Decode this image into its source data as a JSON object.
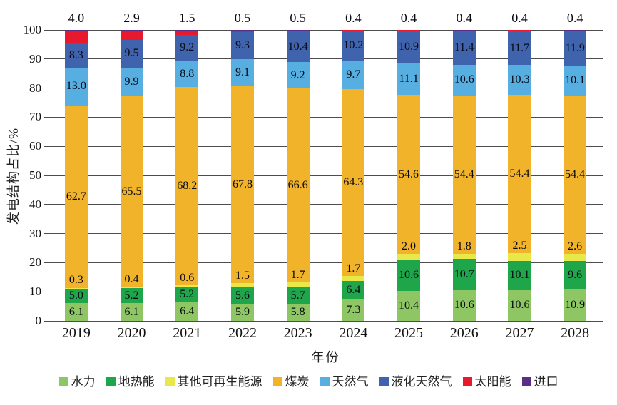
{
  "chart_data": {
    "type": "bar",
    "subtype": "stacked",
    "title": "",
    "xlabel": "年份",
    "ylabel": "发电结构占比/%",
    "ylim": [
      0,
      100
    ],
    "ytick_step": 10,
    "grid": true,
    "legend_position": "bottom",
    "categories": [
      "2019",
      "2020",
      "2021",
      "2022",
      "2023",
      "2024",
      "2025",
      "2026",
      "2027",
      "2028"
    ],
    "series": [
      {
        "name": "水力",
        "slug": "hydro",
        "color": "#8dc663",
        "label_position": "inside",
        "values": [
          6.1,
          6.1,
          6.4,
          5.9,
          5.8,
          7.3,
          10.4,
          10.6,
          10.6,
          10.9
        ]
      },
      {
        "name": "地热能",
        "slug": "geothermal",
        "color": "#1fa64a",
        "label_position": "inside",
        "values": [
          5.0,
          5.2,
          5.2,
          5.6,
          5.7,
          6.4,
          10.6,
          10.7,
          10.1,
          9.6
        ]
      },
      {
        "name": "其他可再生能源",
        "slug": "other-renewables",
        "color": "#e9e climbed",
        "label_position": "above-segment",
        "values": [
          0.3,
          0.4,
          0.6,
          1.5,
          1.7,
          1.7,
          2.0,
          1.8,
          2.5,
          2.6
        ]
      },
      {
        "name": "煤炭",
        "slug": "coal",
        "color": "#f0b32a",
        "label_position": "inside",
        "values": [
          62.7,
          65.5,
          68.2,
          67.8,
          66.6,
          64.3,
          54.6,
          54.4,
          54.4,
          54.4
        ]
      },
      {
        "name": "天然气",
        "slug": "natural-gas",
        "color": "#57aee0",
        "label_position": "inside",
        "values": [
          13.0,
          9.9,
          8.8,
          9.1,
          9.2,
          9.7,
          11.1,
          10.6,
          10.3,
          10.1
        ]
      },
      {
        "name": "液化天然气",
        "slug": "lng",
        "color": "#3f63ac",
        "label_position": "inside",
        "values": [
          8.3,
          9.5,
          9.2,
          9.3,
          10.4,
          10.2,
          10.9,
          11.4,
          11.7,
          11.9
        ]
      },
      {
        "name": "太阳能",
        "slug": "solar",
        "color": "#e8182d",
        "label_position": "above-bar",
        "values": [
          4.0,
          2.9,
          1.5,
          0.5,
          0.5,
          0.4,
          0.4,
          0.4,
          0.4,
          0.4
        ]
      },
      {
        "name": "进口",
        "slug": "import",
        "color": "#5c2d87",
        "label_position": "none",
        "values": [
          0.6,
          0.5,
          0.1,
          0.3,
          0.1,
          0.0,
          0.0,
          0.1,
          0.0,
          0.1
        ]
      }
    ]
  }
}
